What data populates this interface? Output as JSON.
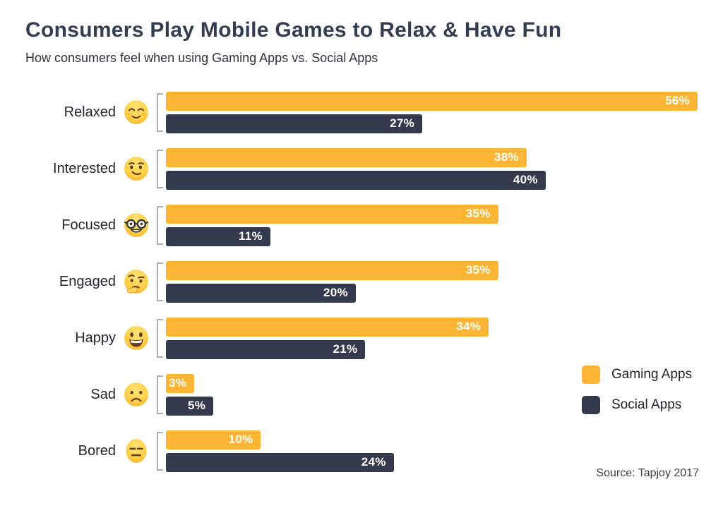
{
  "title": "Consumers Play Mobile Games to Relax & Have Fun",
  "subtitle": "How consumers feel when using Gaming Apps vs. Social Apps",
  "source": "Source: Tapjoy 2017",
  "colors": {
    "gaming": "#FCB535",
    "social": "#333A4E",
    "title_text": "#333D52",
    "background": "#FFFFFF",
    "bracket": "#ACAFB5",
    "value_text": "#FFFFFF"
  },
  "chart_data": {
    "type": "bar",
    "orientation": "horizontal",
    "title": "Consumers Play Mobile Games to Relax & Have Fun",
    "subtitle": "How consumers feel when using Gaming Apps vs. Social Apps",
    "categories": [
      "Relaxed",
      "Interested",
      "Focused",
      "Engaged",
      "Happy",
      "Sad",
      "Bored"
    ],
    "category_icons": [
      "relieved-face",
      "smirking-face",
      "nerd-face",
      "thinking-face",
      "grinning-face",
      "frowning-face",
      "expressionless-face"
    ],
    "series": [
      {
        "name": "Gaming Apps",
        "color": "#FCB535",
        "values": [
          56,
          38,
          35,
          35,
          34,
          3,
          10
        ],
        "labels": [
          "56%",
          "38%",
          "35%",
          "35%",
          "34%",
          "3%",
          "10%"
        ]
      },
      {
        "name": "Social Apps",
        "color": "#333A4E",
        "values": [
          27,
          40,
          11,
          20,
          21,
          5,
          24
        ],
        "labels": [
          "27%",
          "40%",
          "11%",
          "20%",
          "21%",
          "5%",
          "24%"
        ]
      }
    ],
    "value_suffix": "%",
    "xlim": [
      0,
      56
    ],
    "xmax": 56,
    "grid": false,
    "legend_position": "right-bottom",
    "source": "Source: Tapjoy 2017"
  }
}
